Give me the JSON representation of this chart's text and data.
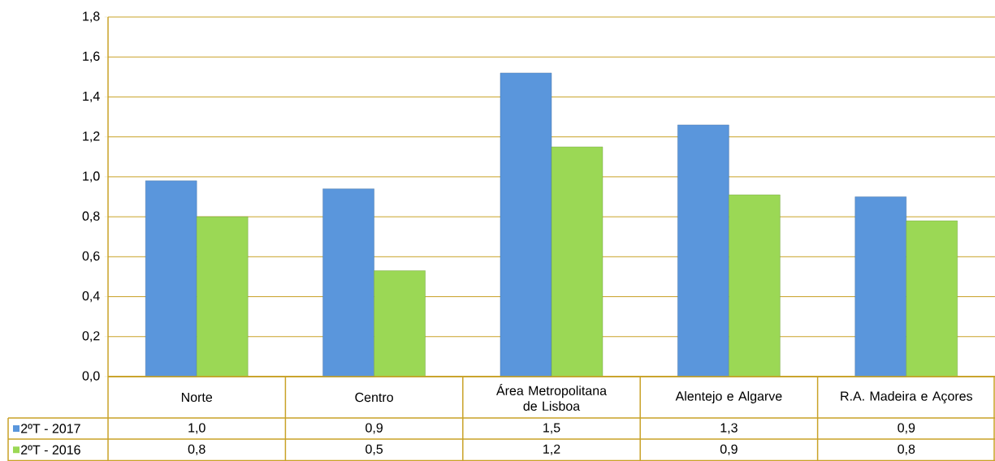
{
  "chart_data": {
    "type": "bar",
    "categories": [
      "Norte",
      "Centro",
      "Área Metropolitana de Lisboa",
      "Alentejo e Algarve",
      "R.A. Madeira e Açores"
    ],
    "series": [
      {
        "name": "2ºT - 2017",
        "color": "#5a96dc",
        "values": [
          0.98,
          0.94,
          1.52,
          1.26,
          0.9
        ],
        "value_labels": [
          "1,0",
          "0,9",
          "1,5",
          "1,3",
          "0,9"
        ]
      },
      {
        "name": "2ºT - 2016",
        "color": "#9bd855",
        "values": [
          0.8,
          0.53,
          1.15,
          0.91,
          0.78
        ],
        "value_labels": [
          "0,8",
          "0,5",
          "1,2",
          "0,9",
          "0,8"
        ]
      }
    ],
    "ylim": [
      0,
      1.8
    ],
    "yticks": [
      {
        "value": 0,
        "label": "0,0"
      },
      {
        "value": 0.2,
        "label": "0,2"
      },
      {
        "value": 0.4,
        "label": "0,4"
      },
      {
        "value": 0.6,
        "label": "0,6"
      },
      {
        "value": 0.8,
        "label": "0,8"
      },
      {
        "value": 1.0,
        "label": "1,0"
      },
      {
        "value": 1.2,
        "label": "1,2"
      },
      {
        "value": 1.4,
        "label": "1,4"
      },
      {
        "value": 1.6,
        "label": "1,6"
      },
      {
        "value": 1.8,
        "label": "1,8"
      }
    ],
    "grid": "y",
    "legend": "bottom"
  }
}
